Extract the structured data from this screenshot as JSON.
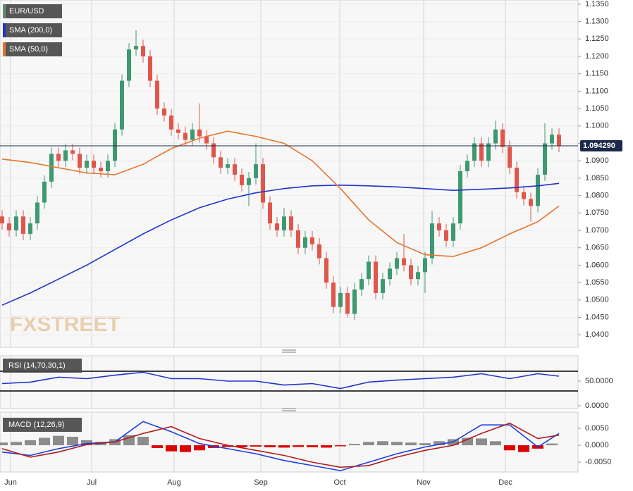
{
  "chart_data": [
    {
      "type": "candlestick",
      "watermark": "FXSTREET",
      "grid": true,
      "xlim": [
        -0.3,
        81.7
      ],
      "xticks": [
        {
          "value": 1.2,
          "label": "Jun"
        },
        {
          "value": 12.7,
          "label": "Jul"
        },
        {
          "value": 24.4,
          "label": "Aug"
        },
        {
          "value": 36.7,
          "label": "Sep"
        },
        {
          "value": 47.9,
          "label": "Oct"
        },
        {
          "value": 59.8,
          "label": "Nov"
        },
        {
          "value": 71.4,
          "label": "Dec"
        }
      ],
      "ylim": [
        1.0364,
        1.1362
      ],
      "yticks": [
        {
          "value": 1.135,
          "label": "1.1350"
        },
        {
          "value": 1.13,
          "label": "1.1300"
        },
        {
          "value": 1.125,
          "label": "1.1250"
        },
        {
          "value": 1.12,
          "label": "1.1200"
        },
        {
          "value": 1.115,
          "label": "1.1150"
        },
        {
          "value": 1.11,
          "label": "1.1100"
        },
        {
          "value": 1.105,
          "label": "1.1050"
        },
        {
          "value": 1.1,
          "label": "1.1000"
        },
        {
          "value": 1.095,
          "label": "1.0950"
        },
        {
          "value": 1.09,
          "label": "1.0900"
        },
        {
          "value": 1.085,
          "label": "1.0850"
        },
        {
          "value": 1.08,
          "label": "1.0800"
        },
        {
          "value": 1.075,
          "label": "1.0750"
        },
        {
          "value": 1.07,
          "label": "1.0700"
        },
        {
          "value": 1.065,
          "label": "1.0650"
        },
        {
          "value": 1.06,
          "label": "1.0600"
        },
        {
          "value": 1.055,
          "label": "1.0550"
        },
        {
          "value": 1.05,
          "label": "1.0500"
        },
        {
          "value": 1.045,
          "label": "1.0450"
        },
        {
          "value": 1.04,
          "label": "1.0400"
        }
      ],
      "last_price": {
        "value": 1.09429,
        "label": "1.094290"
      },
      "series": [
        {
          "name": "EUR/USD",
          "kind": "ohlc",
          "color": "#3d9970",
          "down_color": "#e0564a",
          "legend_color": "#5f8f6f",
          "open": [
            1.074,
            1.072,
            1.07,
            1.074,
            1.069,
            1.072,
            1.078,
            1.084,
            1.092,
            1.09,
            1.093,
            1.092,
            1.088,
            1.09,
            1.088,
            1.087,
            1.09,
            1.099,
            1.113,
            1.122,
            1.123,
            1.12,
            1.113,
            1.105,
            1.103,
            1.099,
            1.098,
            1.096,
            1.099,
            1.097,
            1.095,
            1.091,
            1.088,
            1.089,
            1.086,
            1.083,
            1.085,
            1.089,
            1.078,
            1.072,
            1.07,
            1.074,
            1.07,
            1.065,
            1.068,
            1.066,
            1.062,
            1.055,
            1.048,
            1.052,
            1.046,
            1.053,
            1.056,
            1.061,
            1.052,
            1.056,
            1.059,
            1.062,
            1.06,
            1.056,
            1.058,
            1.062,
            1.072,
            1.07,
            1.067,
            1.072,
            1.087,
            1.09,
            1.095,
            1.09,
            1.095,
            1.099,
            1.094,
            1.088,
            1.081,
            1.079,
            1.077,
            1.086,
            1.095,
            1.0975
          ],
          "high": [
            1.0758,
            1.0738,
            1.0758,
            1.0758,
            1.0738,
            1.0798,
            1.0858,
            1.0938,
            1.0938,
            1.0948,
            1.0948,
            1.0938,
            1.0918,
            1.0918,
            1.0898,
            1.0918,
            1.1008,
            1.1148,
            1.1238,
            1.1275,
            1.1248,
            1.1218,
            1.1148,
            1.1068,
            1.1048,
            1.1008,
            1.0998,
            1.1008,
            1.1065,
            1.0988,
            1.0968,
            1.0928,
            1.0908,
            1.0908,
            1.0878,
            1.0868,
            1.095,
            1.0908,
            1.0798,
            1.0738,
            1.0765,
            1.0758,
            1.0718,
            1.0698,
            1.0698,
            1.0678,
            1.0638,
            1.0568,
            1.0538,
            1.0538,
            1.0548,
            1.0578,
            1.0628,
            1.0628,
            1.0578,
            1.0608,
            1.0638,
            1.069,
            1.0618,
            1.0598,
            1.0638,
            1.0755,
            1.0738,
            1.0718,
            1.0738,
            1.0888,
            1.0918,
            1.0968,
            1.0968,
            1.0968,
            1.1015,
            1.1008,
            1.0958,
            1.0898,
            1.0828,
            1.0808,
            1.0878,
            1.1008,
            1.0993,
            1.0993
          ],
          "low": [
            1.0702,
            1.0682,
            1.0682,
            1.0672,
            1.0672,
            1.0702,
            1.0762,
            1.0822,
            1.0882,
            1.0882,
            1.0902,
            1.0862,
            1.0862,
            1.0862,
            1.0852,
            1.0852,
            1.0882,
            1.0972,
            1.1112,
            1.1202,
            1.1182,
            1.1112,
            1.1032,
            1.1012,
            1.0972,
            1.0962,
            1.0942,
            1.0942,
            1.0952,
            1.0932,
            1.0892,
            1.0862,
            1.0862,
            1.0842,
            1.0812,
            1.077,
            1.0832,
            1.0762,
            1.0702,
            1.0682,
            1.0682,
            1.0682,
            1.0632,
            1.0632,
            1.0642,
            1.0602,
            1.0532,
            1.0462,
            1.0462,
            1.045,
            1.0442,
            1.0512,
            1.0542,
            1.0502,
            1.0502,
            1.0542,
            1.0572,
            1.0582,
            1.0542,
            1.0542,
            1.052,
            1.0602,
            1.0682,
            1.0652,
            1.0652,
            1.0702,
            1.0852,
            1.0882,
            1.0882,
            1.0882,
            1.0932,
            1.0922,
            1.0862,
            1.0792,
            1.0772,
            1.0725,
            1.0752,
            1.0842,
            1.0932,
            1.0925
          ],
          "close": [
            1.072,
            1.07,
            1.074,
            1.069,
            1.072,
            1.078,
            1.084,
            1.092,
            1.09,
            1.093,
            1.092,
            1.088,
            1.09,
            1.088,
            1.087,
            1.09,
            1.099,
            1.113,
            1.122,
            1.123,
            1.12,
            1.113,
            1.105,
            1.103,
            1.099,
            1.098,
            1.096,
            1.099,
            1.097,
            1.095,
            1.091,
            1.088,
            1.089,
            1.086,
            1.083,
            1.085,
            1.089,
            1.078,
            1.072,
            1.07,
            1.074,
            1.07,
            1.065,
            1.068,
            1.066,
            1.062,
            1.055,
            1.048,
            1.052,
            1.046,
            1.053,
            1.056,
            1.061,
            1.052,
            1.056,
            1.059,
            1.062,
            1.06,
            1.056,
            1.058,
            1.062,
            1.072,
            1.07,
            1.067,
            1.072,
            1.087,
            1.09,
            1.095,
            1.09,
            1.095,
            1.099,
            1.094,
            1.088,
            1.081,
            1.079,
            1.077,
            1.086,
            1.095,
            1.0975,
            1.0943
          ]
        },
        {
          "name": "SMA (200,0)",
          "kind": "line",
          "color": "#2233cc",
          "x": [
            0,
            4,
            8,
            12,
            16,
            20,
            24,
            28,
            32,
            36,
            40,
            44,
            48,
            52,
            56,
            60,
            64,
            68,
            72,
            76,
            79
          ],
          "values": [
            1.0485,
            1.052,
            1.056,
            1.06,
            1.0645,
            1.069,
            1.073,
            1.0765,
            1.079,
            1.0808,
            1.082,
            1.0828,
            1.083,
            1.0828,
            1.0825,
            1.082,
            1.0815,
            1.0818,
            1.0822,
            1.0828,
            1.0835
          ]
        },
        {
          "name": "SMA (50,0)",
          "kind": "line",
          "color": "#e8742c",
          "x": [
            0,
            4,
            8,
            12,
            16,
            20,
            24,
            28,
            32,
            36,
            40,
            44,
            48,
            52,
            56,
            60,
            64,
            68,
            72,
            76,
            79
          ],
          "values": [
            1.0905,
            1.0895,
            1.088,
            1.0865,
            1.086,
            1.089,
            1.0935,
            1.0965,
            1.0985,
            1.097,
            1.095,
            1.09,
            1.082,
            1.073,
            1.0665,
            1.063,
            1.0625,
            1.065,
            1.069,
            1.0725,
            1.077
          ]
        }
      ]
    },
    {
      "type": "line",
      "title": "RSI (14,70,30,1)",
      "ylim": [
        -5.7,
        101.4
      ],
      "yticks": [
        {
          "value": 50,
          "label": "50.0000"
        },
        {
          "value": 0,
          "label": "0.0000"
        }
      ],
      "levels": [
        70,
        30
      ],
      "series": [
        {
          "kind": "line",
          "color": "#2233cc",
          "x": [
            0,
            4,
            8,
            12,
            16,
            20,
            24,
            28,
            32,
            36,
            40,
            44,
            48,
            52,
            56,
            60,
            64,
            68,
            72,
            76,
            79
          ],
          "values": [
            45,
            48,
            58,
            55,
            62,
            68,
            55,
            55,
            50,
            50,
            42,
            45,
            35,
            48,
            52,
            55,
            58,
            65,
            55,
            65,
            60
          ]
        }
      ]
    },
    {
      "type": "macd",
      "title": "MACD (12,26,9)",
      "ylim": [
        -0.0079,
        0.0098
      ],
      "yticks": [
        {
          "value": 0.005,
          "label": "0.0050"
        },
        {
          "value": 0,
          "label": "0.0000"
        },
        {
          "value": -0.005,
          "label": "-0.0050"
        }
      ],
      "series": [
        {
          "kind": "bar",
          "color": "#8c8c8c",
          "down_color": "#e00000",
          "x": [
            0,
            2,
            4,
            6,
            8,
            10,
            12,
            14,
            16,
            18,
            20,
            22,
            24,
            26,
            28,
            30,
            32,
            34,
            36,
            38,
            40,
            42,
            44,
            46,
            48,
            50,
            52,
            54,
            56,
            58,
            60,
            62,
            64,
            66,
            68,
            70,
            72,
            74,
            76,
            78
          ],
          "values": [
            0.0008,
            0.001,
            0.0015,
            0.0022,
            0.0028,
            0.0025,
            0.0015,
            0.001,
            0.0018,
            0.003,
            0.0025,
            -0.0008,
            -0.0018,
            -0.002,
            -0.0015,
            -0.0008,
            -0.0005,
            -0.0006,
            -0.0004,
            -0.0006,
            -0.0007,
            -0.0005,
            -0.0006,
            -0.0007,
            -0.0003,
            0.0004,
            0.001,
            0.0012,
            0.001,
            0.0008,
            0.0006,
            0.0012,
            0.0018,
            0.0022,
            0.002,
            0.0012,
            -0.0015,
            -0.002,
            -0.001,
            0.0005
          ]
        },
        {
          "kind": "line",
          "color": "#1a3fe0",
          "x": [
            0,
            4,
            8,
            12,
            16,
            20,
            24,
            28,
            32,
            36,
            40,
            44,
            48,
            52,
            56,
            60,
            64,
            68,
            72,
            76,
            79
          ],
          "values": [
            -0.002,
            -0.003,
            -0.001,
            0.0005,
            0.001,
            0.007,
            0.004,
            0.0005,
            -0.001,
            -0.0025,
            -0.0045,
            -0.006,
            -0.0075,
            -0.005,
            -0.0025,
            -0.0005,
            0.001,
            0.006,
            0.006,
            -0.0005,
            0.0035
          ]
        },
        {
          "kind": "line",
          "color": "#b01c1c",
          "x": [
            0,
            4,
            8,
            12,
            16,
            20,
            24,
            28,
            32,
            36,
            40,
            44,
            48,
            52,
            56,
            60,
            64,
            68,
            72,
            76,
            79
          ],
          "values": [
            -0.001,
            -0.0035,
            -0.002,
            0.0002,
            0.001,
            0.0035,
            0.0055,
            0.002,
            0.0,
            -0.0015,
            -0.003,
            -0.005,
            -0.0065,
            -0.006,
            -0.0035,
            -0.0015,
            0.0,
            0.0035,
            0.0065,
            0.002,
            0.003
          ]
        }
      ]
    }
  ]
}
